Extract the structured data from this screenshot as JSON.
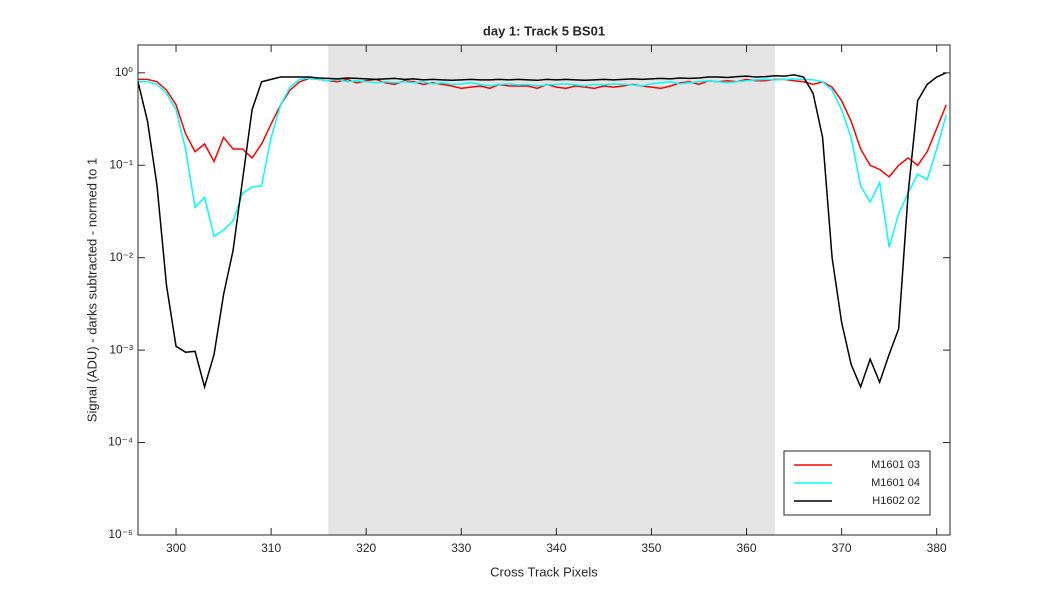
{
  "chart_data": {
    "type": "line",
    "title": "day 1: Track 5  BS01",
    "xlabel": "Cross Track Pixels",
    "ylabel": "Signal (ADU) - darks subtracted - normed to 1",
    "yscale": "log",
    "xlim": [
      296,
      381.4
    ],
    "ylim": [
      1e-05,
      2
    ],
    "xticks": [
      300,
      310,
      320,
      330,
      340,
      350,
      360,
      370,
      380
    ],
    "yticks": [
      {
        "value": 1e-05,
        "label": "10⁻⁵"
      },
      {
        "value": 0.0001,
        "label": "10⁻⁴"
      },
      {
        "value": 0.001,
        "label": "10⁻³"
      },
      {
        "value": 0.01,
        "label": "10⁻²"
      },
      {
        "value": 0.1,
        "label": "10⁻¹"
      },
      {
        "value": 1,
        "label": "10⁰"
      }
    ],
    "shaded_region": {
      "x": [
        316,
        363
      ],
      "color": "#e5e5e5"
    },
    "legend": "lower right",
    "x": [
      296,
      297,
      298,
      299,
      300,
      301,
      302,
      303,
      304,
      305,
      306,
      307,
      308,
      309,
      310,
      311,
      312,
      313,
      314,
      315,
      316,
      317,
      318,
      319,
      320,
      321,
      322,
      323,
      324,
      325,
      326,
      327,
      328,
      329,
      330,
      331,
      332,
      333,
      334,
      335,
      336,
      337,
      338,
      339,
      340,
      341,
      342,
      343,
      344,
      345,
      346,
      347,
      348,
      349,
      350,
      351,
      352,
      353,
      354,
      355,
      356,
      357,
      358,
      359,
      360,
      361,
      362,
      363,
      364,
      365,
      366,
      367,
      368,
      369,
      370,
      371,
      372,
      373,
      374,
      375,
      376,
      377,
      378,
      379,
      380,
      381
    ],
    "series": [
      {
        "name": "M1601 03",
        "color": "#ff0000",
        "values": [
          0.85,
          0.85,
          0.8,
          0.65,
          0.45,
          0.22,
          0.14,
          0.17,
          0.11,
          0.2,
          0.15,
          0.15,
          0.12,
          0.17,
          0.28,
          0.45,
          0.65,
          0.8,
          0.87,
          0.85,
          0.82,
          0.8,
          0.85,
          0.78,
          0.82,
          0.85,
          0.78,
          0.75,
          0.82,
          0.8,
          0.75,
          0.78,
          0.75,
          0.72,
          0.68,
          0.7,
          0.72,
          0.68,
          0.75,
          0.72,
          0.72,
          0.72,
          0.68,
          0.75,
          0.7,
          0.68,
          0.72,
          0.7,
          0.68,
          0.72,
          0.7,
          0.72,
          0.75,
          0.72,
          0.7,
          0.68,
          0.72,
          0.78,
          0.8,
          0.75,
          0.82,
          0.8,
          0.82,
          0.8,
          0.85,
          0.82,
          0.82,
          0.85,
          0.85,
          0.82,
          0.8,
          0.75,
          0.8,
          0.7,
          0.5,
          0.3,
          0.15,
          0.1,
          0.09,
          0.075,
          0.1,
          0.12,
          0.1,
          0.14,
          0.25,
          0.45
        ]
      },
      {
        "name": "M1601 04",
        "color": "#00ffff",
        "values": [
          0.8,
          0.8,
          0.75,
          0.6,
          0.4,
          0.15,
          0.035,
          0.045,
          0.017,
          0.02,
          0.025,
          0.05,
          0.058,
          0.06,
          0.2,
          0.45,
          0.7,
          0.85,
          0.88,
          0.85,
          0.82,
          0.85,
          0.8,
          0.82,
          0.8,
          0.78,
          0.8,
          0.78,
          0.8,
          0.78,
          0.8,
          0.76,
          0.78,
          0.75,
          0.76,
          0.78,
          0.75,
          0.72,
          0.75,
          0.76,
          0.74,
          0.75,
          0.72,
          0.74,
          0.75,
          0.76,
          0.74,
          0.72,
          0.75,
          0.74,
          0.76,
          0.75,
          0.74,
          0.72,
          0.76,
          0.78,
          0.8,
          0.76,
          0.78,
          0.8,
          0.82,
          0.8,
          0.78,
          0.8,
          0.82,
          0.84,
          0.85,
          0.84,
          0.85,
          0.86,
          0.85,
          0.84,
          0.8,
          0.65,
          0.4,
          0.2,
          0.06,
          0.04,
          0.065,
          0.013,
          0.03,
          0.05,
          0.08,
          0.07,
          0.15,
          0.35
        ]
      },
      {
        "name": "H1602 02",
        "color": "#000000",
        "values": [
          0.8,
          0.3,
          0.06,
          0.005,
          0.0011,
          0.00095,
          0.00097,
          0.0004,
          0.0009,
          0.004,
          0.012,
          0.07,
          0.4,
          0.8,
          0.85,
          0.9,
          0.9,
          0.9,
          0.9,
          0.88,
          0.87,
          0.86,
          0.88,
          0.87,
          0.86,
          0.85,
          0.86,
          0.87,
          0.85,
          0.86,
          0.84,
          0.85,
          0.84,
          0.83,
          0.84,
          0.85,
          0.84,
          0.84,
          0.85,
          0.84,
          0.85,
          0.84,
          0.83,
          0.85,
          0.84,
          0.85,
          0.84,
          0.83,
          0.84,
          0.85,
          0.84,
          0.85,
          0.86,
          0.85,
          0.86,
          0.87,
          0.86,
          0.88,
          0.87,
          0.88,
          0.9,
          0.9,
          0.89,
          0.91,
          0.92,
          0.9,
          0.91,
          0.93,
          0.92,
          0.95,
          0.9,
          0.6,
          0.2,
          0.01,
          0.002,
          0.0007,
          0.0004,
          0.0008,
          0.00045,
          0.0009,
          0.0017,
          0.05,
          0.5,
          0.75,
          0.9,
          1.0
        ]
      }
    ]
  }
}
